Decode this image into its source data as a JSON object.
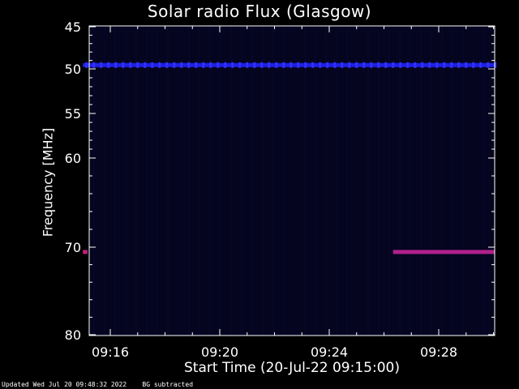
{
  "chart_data": {
    "type": "heatmap",
    "title": "Solar radio Flux (Glasgow)",
    "xlabel": "Start Time (20-Jul-22 09:15:00)",
    "ylabel": "Frequency [MHz]",
    "x_range": [
      "09:15:00",
      "09:30:30"
    ],
    "y_ticks": [
      45,
      50,
      55,
      60,
      70,
      80
    ],
    "x_ticks": [
      "09:16",
      "09:20",
      "09:24",
      "09:28"
    ],
    "features": [
      {
        "label": "RFI band",
        "freq_mhz": 49.5,
        "start": "09:15:00",
        "end": "09:30:30",
        "color": "#2020e0"
      },
      {
        "label": "RFI band",
        "freq_mhz": 70.5,
        "start": "09:26:20",
        "end": "09:30:30",
        "color": "#b0208c"
      },
      {
        "label": "RFI burst",
        "freq_mhz": 70.5,
        "start": "09:15:00",
        "end": "09:15:10",
        "color": "#c02080"
      }
    ],
    "grid": false,
    "colors": {
      "background": "#000000",
      "plot_bg": "#050520",
      "axes": "#ffffff"
    }
  },
  "footer": {
    "updated": "Updated Wed Jul 20 09:48:32 2022",
    "note": "BG subtracted"
  }
}
